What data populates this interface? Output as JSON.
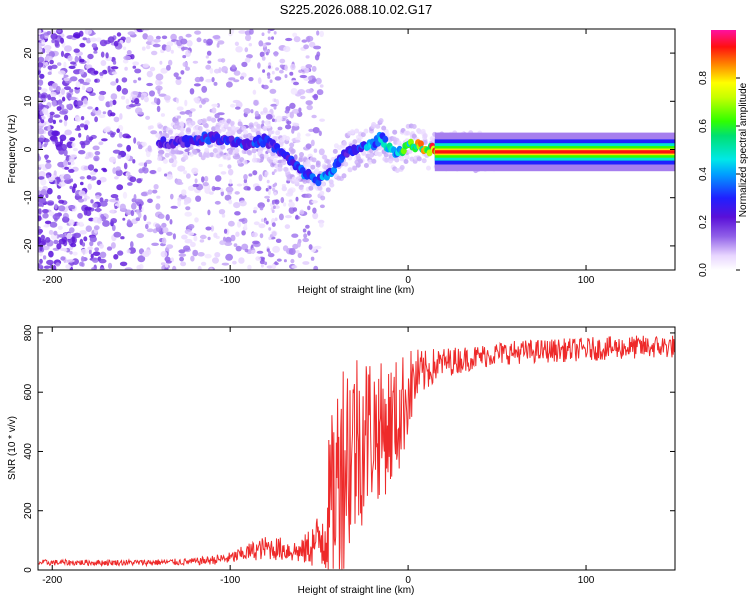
{
  "figure_title": "S225.2026.088.10.02.G17",
  "colors": {
    "snr_line": "#ee2a2a",
    "axis": "#000000",
    "background": "#ffffff"
  },
  "chart_data": [
    {
      "type": "heatmap",
      "name": "spectrogram",
      "title": "S225.2026.088.10.02.G17",
      "xlabel": "Height of straight line (km)",
      "ylabel": "Frequency (Hz)",
      "xlim": [
        -208,
        150
      ],
      "ylim": [
        -25,
        25
      ],
      "xticks": [
        -200,
        -100,
        0,
        100
      ],
      "yticks": [
        -20,
        -10,
        0,
        10,
        20
      ],
      "colorbar": {
        "label": "Normalized spectral amplitude",
        "range": [
          0,
          1
        ],
        "ticks": [
          "0.0",
          "0.2",
          "0.4",
          "0.6",
          "0.8"
        ],
        "colormap": "rainbow (lavender → violet → blue → cyan → green → yellow → red)"
      },
      "ridge": {
        "description": "Dominant frequency ridge: noisy scatter below -100 km, wandering ridge between -100 and 20 km, steady line near -0.5 Hz above 20 km",
        "x": [
          -135,
          -120,
          -110,
          -100,
          -90,
          -80,
          -70,
          -60,
          -50,
          -45,
          -40,
          -35,
          -30,
          -25,
          -20,
          -15,
          -10,
          -5,
          0,
          5,
          10,
          15,
          20,
          30,
          40,
          60,
          80,
          100,
          120,
          150
        ],
        "y": [
          1.5,
          2,
          2.5,
          2,
          1,
          2,
          -1,
          -4.5,
          -6.5,
          -5,
          -3,
          -1,
          0,
          0.5,
          1,
          2.5,
          0,
          -0.5,
          1,
          0.8,
          0,
          0,
          -0.2,
          -0.4,
          -0.5,
          -0.5,
          -0.5,
          -0.5,
          -0.5,
          -0.5
        ],
        "amplitude": [
          0.25,
          0.3,
          0.35,
          0.3,
          0.35,
          0.3,
          0.3,
          0.35,
          0.4,
          0.4,
          0.35,
          0.3,
          0.35,
          0.4,
          0.45,
          0.45,
          0.5,
          0.55,
          0.7,
          0.8,
          0.9,
          0.95,
          0.92,
          0.9,
          0.9,
          0.9,
          0.9,
          0.9,
          0.9,
          0.9
        ]
      }
    },
    {
      "type": "line",
      "name": "snr",
      "xlabel": "Height of straight line (km)",
      "ylabel": "SNR (10 * v/v)",
      "xlim": [
        -208,
        150
      ],
      "ylim": [
        0,
        820
      ],
      "xticks": [
        -200,
        -100,
        0,
        100
      ],
      "yticks": [
        0,
        200,
        400,
        600,
        800
      ],
      "series": [
        {
          "name": "SNR",
          "x": [
            -208,
            -180,
            -150,
            -120,
            -100,
            -90,
            -80,
            -70,
            -60,
            -50,
            -45,
            -40,
            -35,
            -30,
            -25,
            -20,
            -15,
            -10,
            -5,
            0,
            5,
            10,
            15,
            20,
            30,
            40,
            50,
            60,
            80,
            100,
            120,
            150
          ],
          "y": [
            25,
            25,
            25,
            28,
            40,
            60,
            75,
            70,
            60,
            100,
            180,
            300,
            400,
            430,
            460,
            480,
            470,
            490,
            520,
            600,
            650,
            670,
            690,
            700,
            710,
            720,
            730,
            735,
            740,
            745,
            750,
            755
          ],
          "noise_amplitude": [
            10,
            10,
            10,
            12,
            20,
            30,
            40,
            40,
            40,
            100,
            250,
            350,
            400,
            350,
            300,
            260,
            230,
            220,
            200,
            150,
            100,
            70,
            60,
            50,
            45,
            40,
            40,
            40,
            40,
            40,
            40,
            40
          ]
        }
      ]
    }
  ]
}
